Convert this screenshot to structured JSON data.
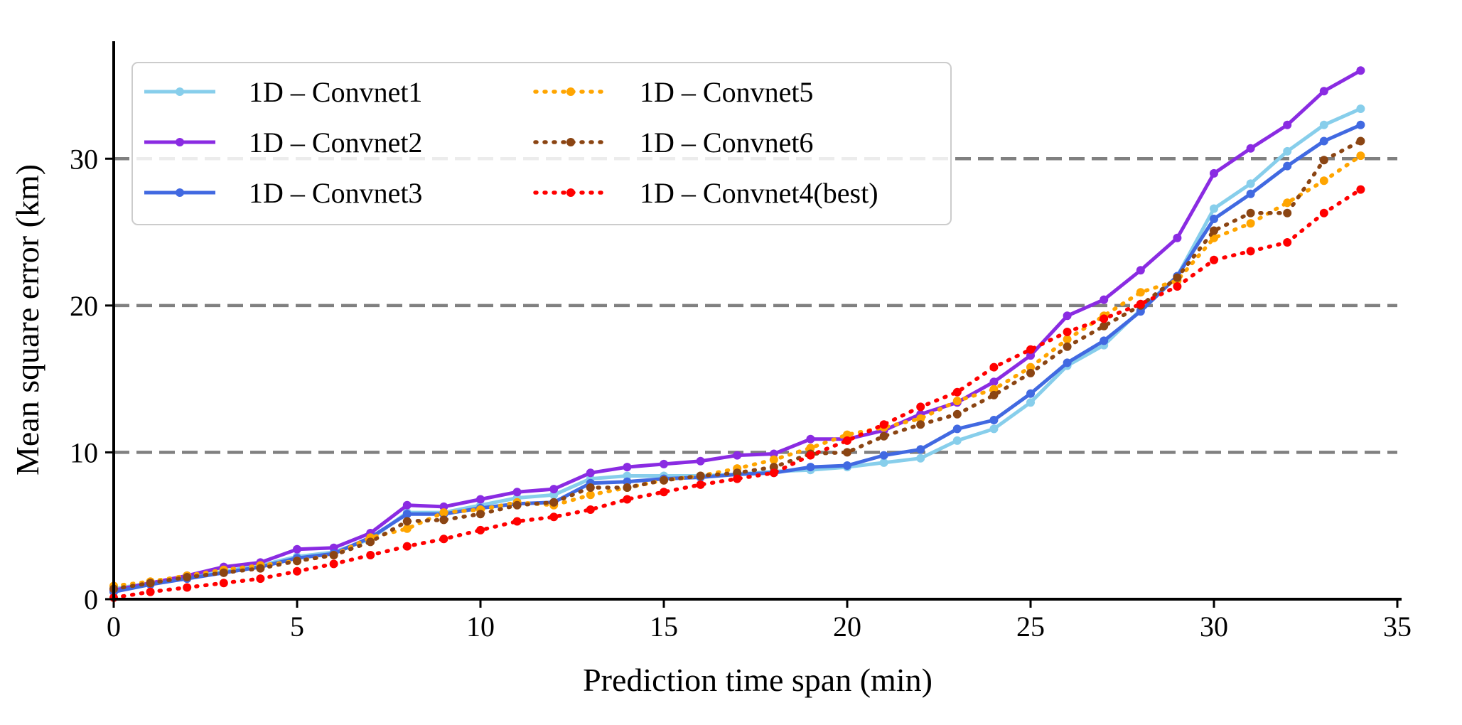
{
  "chart_data": {
    "type": "line",
    "xlabel": "Prediction time span (min)",
    "ylabel": "Mean square error (km)",
    "xlim": [
      0,
      35
    ],
    "ylim": [
      0,
      38
    ],
    "xticks": [
      0,
      5,
      10,
      15,
      20,
      25,
      30,
      35
    ],
    "yticks": [
      0,
      10,
      20,
      30
    ],
    "hlines": [
      10,
      20,
      30
    ],
    "legend_position": "top-left",
    "x": [
      0,
      1,
      2,
      3,
      4,
      5,
      6,
      7,
      8,
      9,
      10,
      11,
      12,
      13,
      14,
      15,
      16,
      17,
      18,
      19,
      20,
      21,
      22,
      23,
      24,
      25,
      26,
      27,
      28,
      29,
      30,
      31,
      32,
      33,
      34
    ],
    "series": [
      {
        "name": "1D – Convnet1",
        "color": "#87ceeb",
        "style": "solid",
        "values": [
          0.7,
          1.1,
          1.5,
          1.9,
          2.3,
          2.9,
          3.2,
          4.1,
          5.9,
          5.9,
          6.4,
          6.9,
          7.1,
          8.2,
          8.4,
          8.4,
          8.4,
          8.5,
          8.7,
          8.8,
          9.0,
          9.3,
          9.6,
          10.8,
          11.6,
          13.4,
          15.9,
          17.3,
          19.7,
          22.0,
          26.6,
          28.3,
          30.5,
          32.3,
          33.4
        ]
      },
      {
        "name": "1D – Convnet2",
        "color": "#8a2be2",
        "style": "solid",
        "values": [
          0.6,
          1.1,
          1.6,
          2.2,
          2.5,
          3.4,
          3.5,
          4.5,
          6.4,
          6.3,
          6.8,
          7.3,
          7.5,
          8.6,
          9.0,
          9.2,
          9.4,
          9.8,
          9.9,
          10.9,
          10.9,
          11.5,
          12.6,
          13.4,
          14.8,
          16.6,
          19.3,
          20.4,
          22.4,
          24.6,
          29.0,
          30.7,
          32.3,
          34.6,
          36.0
        ]
      },
      {
        "name": "1D – Convnet3",
        "color": "#4169e1",
        "style": "solid",
        "values": [
          0.5,
          1.0,
          1.4,
          1.8,
          2.2,
          2.8,
          3.1,
          4.2,
          5.8,
          5.8,
          6.2,
          6.5,
          6.6,
          7.9,
          8.0,
          8.2,
          8.3,
          8.5,
          8.6,
          9.0,
          9.1,
          9.8,
          10.2,
          11.6,
          12.2,
          14.0,
          16.1,
          17.6,
          19.6,
          22.0,
          25.9,
          27.6,
          29.5,
          31.2,
          32.3
        ]
      },
      {
        "name": "1D – Convnet5",
        "color": "#ffa500",
        "style": "dotted",
        "values": [
          0.9,
          1.2,
          1.6,
          2.0,
          2.3,
          2.6,
          3.0,
          4.2,
          4.8,
          5.9,
          6.1,
          6.6,
          6.4,
          7.1,
          7.6,
          8.1,
          8.4,
          8.9,
          9.5,
          10.3,
          11.2,
          11.7,
          12.3,
          13.5,
          14.3,
          15.8,
          17.7,
          19.3,
          20.9,
          21.7,
          24.6,
          25.6,
          27.0,
          28.5,
          30.2
        ]
      },
      {
        "name": "1D – Convnet6",
        "color": "#8b4513",
        "style": "dotted",
        "values": [
          0.7,
          1.1,
          1.5,
          1.8,
          2.1,
          2.6,
          3.0,
          3.9,
          5.3,
          5.4,
          5.8,
          6.4,
          6.6,
          7.6,
          7.6,
          8.1,
          8.4,
          8.6,
          9.0,
          9.9,
          10.0,
          11.1,
          11.9,
          12.6,
          13.9,
          15.4,
          17.2,
          18.6,
          20.0,
          21.9,
          25.1,
          26.3,
          26.3,
          29.9,
          31.2
        ]
      },
      {
        "name": "1D – Convnet4(best)",
        "color": "#ff0000",
        "style": "dotted",
        "values": [
          0.1,
          0.5,
          0.8,
          1.1,
          1.4,
          1.9,
          2.4,
          3.0,
          3.6,
          4.1,
          4.7,
          5.3,
          5.6,
          6.1,
          6.8,
          7.3,
          7.8,
          8.2,
          8.6,
          9.8,
          10.8,
          11.9,
          13.1,
          14.1,
          15.8,
          17.0,
          18.2,
          19.1,
          20.1,
          21.3,
          23.1,
          23.7,
          24.3,
          26.3,
          27.9
        ]
      }
    ]
  }
}
